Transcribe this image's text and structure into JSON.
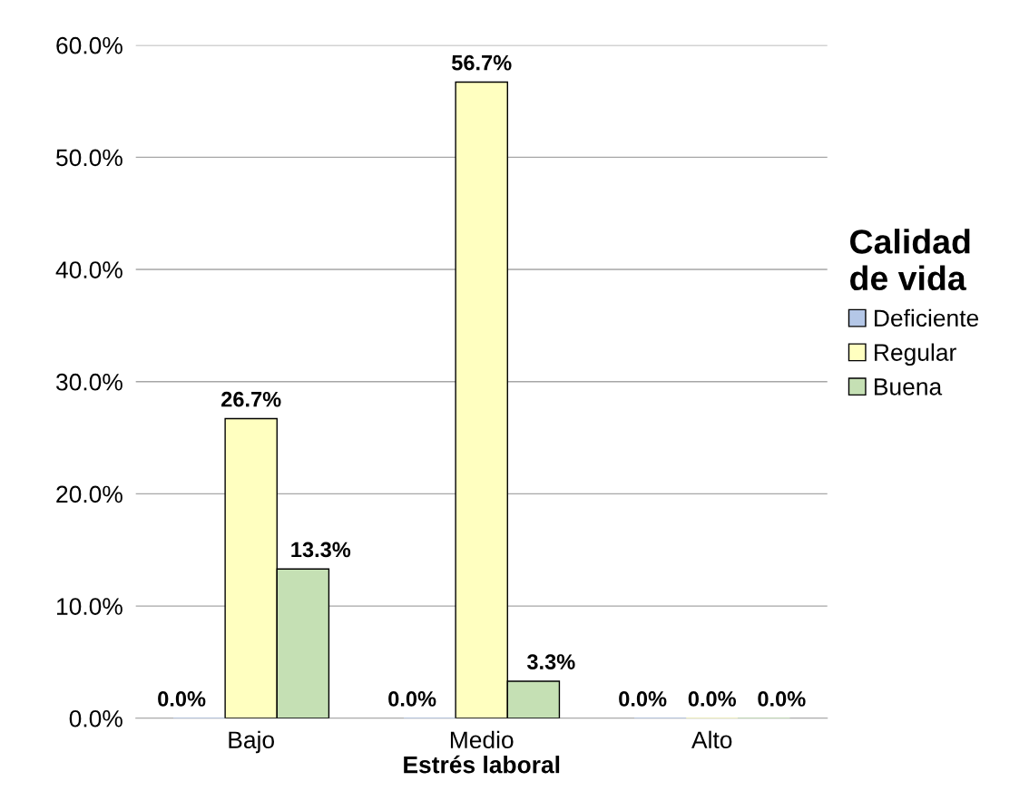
{
  "chart_data": {
    "type": "bar",
    "xlabel": "Estrés laboral",
    "legend_title": "Calidad\nde vida",
    "categories": [
      "Bajo",
      "Medio",
      "Alto"
    ],
    "series": [
      {
        "name": "Deficiente",
        "color": "#b4c7e7",
        "values": [
          0.0,
          0.0,
          0.0
        ],
        "value_labels": [
          "0.0%",
          "0.0%",
          "0.0%"
        ]
      },
      {
        "name": "Regular",
        "color": "#ffffc0",
        "values": [
          26.7,
          56.7,
          0.0
        ],
        "value_labels": [
          "26.7%",
          "56.7%",
          "0.0%"
        ]
      },
      {
        "name": "Buena",
        "color": "#c5e0b4",
        "values": [
          13.3,
          3.3,
          0.0
        ],
        "value_labels": [
          "13.3%",
          "3.3%",
          "0.0%"
        ]
      }
    ],
    "ylim": [
      0,
      60
    ],
    "yticks": [
      {
        "value": 0,
        "label": "0.0%"
      },
      {
        "value": 10,
        "label": "10.0%"
      },
      {
        "value": 20,
        "label": "20.0%"
      },
      {
        "value": 30,
        "label": "30.0%"
      },
      {
        "value": 40,
        "label": "40.0%"
      },
      {
        "value": 50,
        "label": "50.0%"
      },
      {
        "value": 60,
        "label": "60.0%"
      }
    ],
    "grid": "y",
    "legend": "right"
  }
}
